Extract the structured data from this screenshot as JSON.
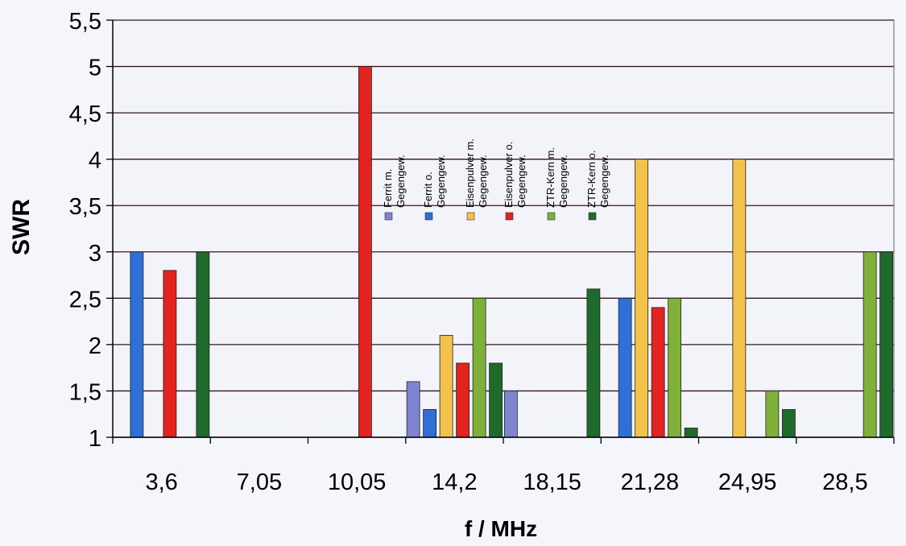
{
  "chart_data": {
    "type": "bar",
    "title": "",
    "xlabel": "f / MHz",
    "ylabel": "SWR",
    "ylim": [
      1,
      5.5
    ],
    "yticks": [
      "1",
      "1,5",
      "2",
      "2,5",
      "3",
      "3,5",
      "4",
      "4,5",
      "5",
      "5,5"
    ],
    "ytick_values": [
      1,
      1.5,
      2,
      2.5,
      3,
      3.5,
      4,
      4.5,
      5,
      5.5
    ],
    "grid": true,
    "legend_position": "top-center",
    "categories": [
      "3,6",
      "7,05",
      "10,05",
      "14,2",
      "18,15",
      "21,28",
      "24,95",
      "28,5"
    ],
    "series": [
      {
        "name": "Ferrit m. Gegengew.",
        "color": "#7f84d0",
        "values": [
          null,
          null,
          null,
          1.6,
          1.5,
          null,
          null,
          null
        ]
      },
      {
        "name": "Ferrit o. Gegengew.",
        "color": "#2f6fd6",
        "values": [
          3.0,
          null,
          null,
          1.3,
          null,
          2.5,
          null,
          null
        ]
      },
      {
        "name": "Eisenpulver m. Gegengew.",
        "color": "#f2c24a",
        "values": [
          null,
          null,
          null,
          2.1,
          null,
          4.0,
          4.0,
          null
        ]
      },
      {
        "name": "Eisenpulver o. Gegengew.",
        "color": "#e2231f",
        "values": [
          2.8,
          null,
          5.0,
          1.8,
          null,
          2.4,
          null,
          null
        ]
      },
      {
        "name": "ZTR-Kern m. Gegengew.",
        "color": "#7fb03a",
        "values": [
          null,
          null,
          null,
          2.5,
          null,
          2.5,
          1.5,
          3.0
        ]
      },
      {
        "name": "ZTR-Kern o. Gegengew.",
        "color": "#1f6b2c",
        "values": [
          3.0,
          null,
          null,
          1.8,
          2.6,
          1.1,
          1.3,
          3.0
        ]
      }
    ]
  }
}
